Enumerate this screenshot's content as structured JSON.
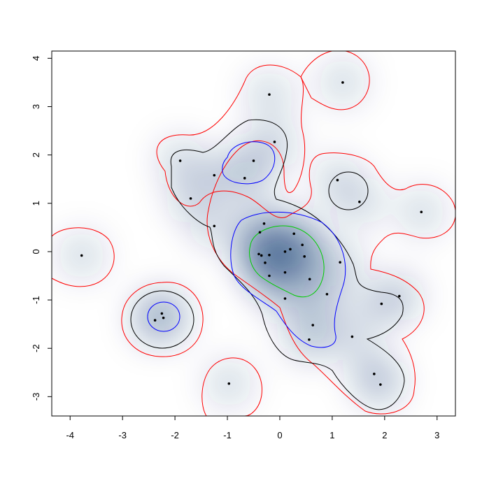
{
  "chart_data": {
    "type": "density-contour",
    "title": "",
    "xlabel": "",
    "ylabel": "",
    "xlim": [
      -4.35,
      3.35
    ],
    "ylim": [
      -3.4,
      4.15
    ],
    "x_ticks": [
      "-4",
      "-3",
      "-2",
      "-1",
      "0",
      "1",
      "2",
      "3"
    ],
    "y_ticks": [
      "-3",
      "-2",
      "-1",
      "0",
      "1",
      "2",
      "3",
      "4"
    ],
    "grid": false,
    "legend": "none",
    "colors": {
      "density_low": "#ffffff",
      "density_high": "#08306b",
      "contour_outer": "#ff0000",
      "contour_mid": "#000000",
      "contour_inner": "#0000ff",
      "contour_peak": "#00cc00",
      "points": "#000000"
    },
    "points": [
      [
        1.2,
        3.5
      ],
      [
        -0.2,
        3.25
      ],
      [
        -0.1,
        2.27
      ],
      [
        -1.9,
        1.88
      ],
      [
        -0.5,
        1.88
      ],
      [
        -0.67,
        1.52
      ],
      [
        -1.25,
        1.58
      ],
      [
        -1.7,
        1.1
      ],
      [
        1.1,
        1.48
      ],
      [
        1.52,
        1.03
      ],
      [
        2.7,
        0.82
      ],
      [
        -1.25,
        0.53
      ],
      [
        -0.3,
        0.58
      ],
      [
        -0.38,
        0.4
      ],
      [
        0.27,
        0.37
      ],
      [
        0.43,
        0.14
      ],
      [
        -3.78,
        -0.08
      ],
      [
        -0.4,
        -0.05
      ],
      [
        -0.35,
        -0.08
      ],
      [
        -0.2,
        -0.07
      ],
      [
        0.1,
        0.0
      ],
      [
        0.2,
        0.05
      ],
      [
        0.47,
        -0.1
      ],
      [
        -0.28,
        -0.23
      ],
      [
        1.15,
        -0.22
      ],
      [
        0.1,
        -0.43
      ],
      [
        -0.2,
        -0.5
      ],
      [
        0.57,
        -0.57
      ],
      [
        0.9,
        -0.88
      ],
      [
        0.1,
        -0.97
      ],
      [
        2.28,
        -0.92
      ],
      [
        1.94,
        -1.08
      ],
      [
        -2.25,
        -1.28
      ],
      [
        -2.22,
        -1.37
      ],
      [
        -2.38,
        -1.42
      ],
      [
        0.63,
        -1.52
      ],
      [
        1.38,
        -1.76
      ],
      [
        0.56,
        -1.82
      ],
      [
        1.8,
        -2.53
      ],
      [
        1.92,
        -2.75
      ],
      [
        -0.97,
        -2.73
      ]
    ]
  }
}
